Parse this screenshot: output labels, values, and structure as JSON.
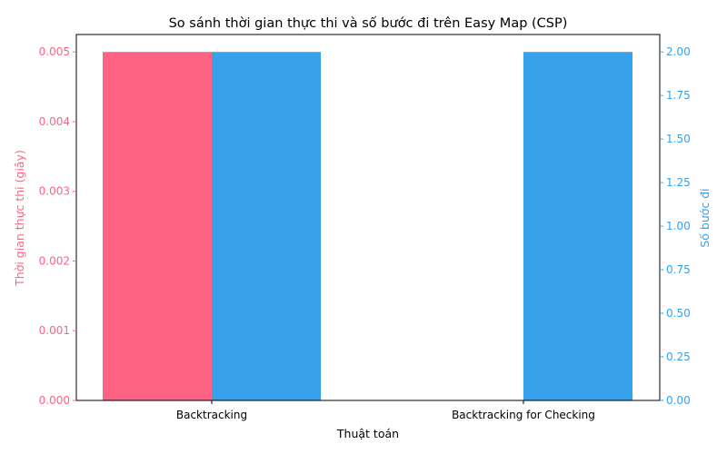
{
  "chart_data": {
    "type": "bar",
    "title": "So sánh thời gian thực thi và số bước đi trên Easy Map (CSP)",
    "xlabel": "Thuật toán",
    "categories": [
      "Backtracking",
      "Backtracking for Checking"
    ],
    "left_axis": {
      "label": "Thời gian thực thi (giây)",
      "color": "#ff6384",
      "ylim": [
        0,
        0.00525
      ],
      "ticks": [
        "0.000",
        "0.001",
        "0.002",
        "0.003",
        "0.004",
        "0.005"
      ]
    },
    "right_axis": {
      "label": "Số bước đi",
      "color": "#36a2eb",
      "ylim": [
        0,
        2.1
      ],
      "ticks": [
        "0.00",
        "0.25",
        "0.50",
        "0.75",
        "1.00",
        "1.25",
        "1.50",
        "1.75",
        "2.00"
      ]
    },
    "series": [
      {
        "axis": "left",
        "color": "#ff6384",
        "values": [
          0.005,
          0
        ]
      },
      {
        "axis": "right",
        "color": "#36a2eb",
        "values": [
          2,
          2
        ]
      }
    ],
    "grid": false
  }
}
